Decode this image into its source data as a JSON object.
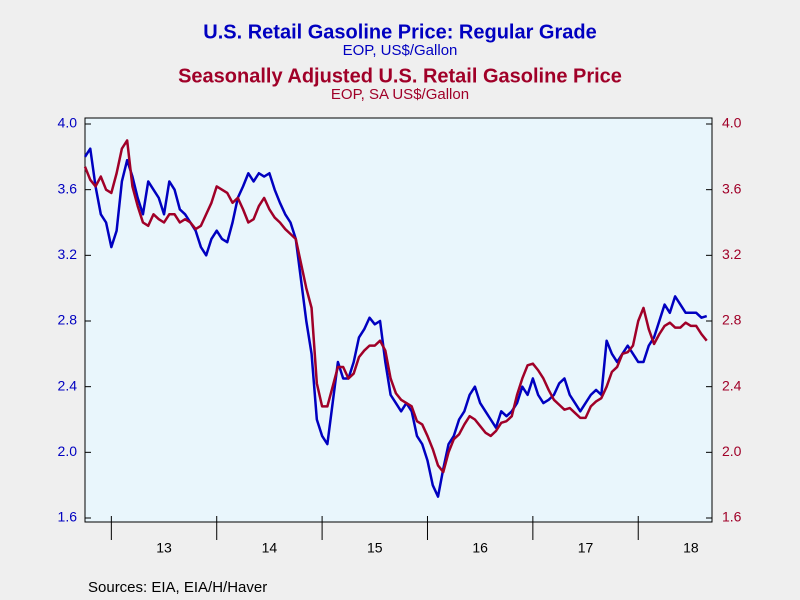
{
  "chart_data": {
    "type": "line",
    "source": "Sources:  EIA, EIA/H/Haver",
    "xlim": [
      2012.75,
      2018.7
    ],
    "xticks": [
      {
        "value": 2013.5,
        "label": "13"
      },
      {
        "value": 2014.5,
        "label": "14"
      },
      {
        "value": 2015.5,
        "label": "15"
      },
      {
        "value": 2016.5,
        "label": "16"
      },
      {
        "value": 2017.5,
        "label": "17"
      },
      {
        "value": 2018.5,
        "label": "18"
      }
    ],
    "ylim": [
      1.6,
      4.0
    ],
    "yticks": [
      1.6,
      {
        "value": 2.0,
        "label": "2.0"
      },
      2.4,
      2.8,
      3.2,
      3.6,
      {
        "value": 4.0,
        "label": "4.0"
      }
    ],
    "y2lim": [
      1.6,
      4.0
    ],
    "y2ticks": [
      1.6,
      {
        "value": 2.0,
        "label": "2.0"
      },
      2.4,
      2.8,
      3.2,
      3.6,
      {
        "value": 4.0,
        "label": "4.0"
      }
    ],
    "x": [
      2012.75,
      2012.8,
      2012.85,
      2012.9,
      2012.95,
      2013,
      2013.05,
      2013.1,
      2013.15,
      2013.2,
      2013.25,
      2013.3,
      2013.35,
      2013.4,
      2013.45,
      2013.5,
      2013.55,
      2013.6,
      2013.65,
      2013.7,
      2013.75,
      2013.8,
      2013.85,
      2013.9,
      2013.95,
      2014,
      2014.05,
      2014.1,
      2014.15,
      2014.2,
      2014.25,
      2014.3,
      2014.35,
      2014.4,
      2014.45,
      2014.5,
      2014.55,
      2014.6,
      2014.65,
      2014.7,
      2014.75,
      2014.8,
      2014.85,
      2014.9,
      2014.95,
      2015,
      2015.05,
      2015.1,
      2015.15,
      2015.2,
      2015.25,
      2015.3,
      2015.35,
      2015.4,
      2015.45,
      2015.5,
      2015.55,
      2015.6,
      2015.65,
      2015.7,
      2015.75,
      2015.8,
      2015.85,
      2015.9,
      2015.95,
      2016,
      2016.05,
      2016.1,
      2016.15,
      2016.2,
      2016.25,
      2016.3,
      2016.35,
      2016.4,
      2016.45,
      2016.5,
      2016.55,
      2016.6,
      2016.65,
      2016.7,
      2016.75,
      2016.8,
      2016.85,
      2016.9,
      2016.95,
      2017,
      2017.05,
      2017.1,
      2017.15,
      2017.2,
      2017.25,
      2017.3,
      2017.35,
      2017.4,
      2017.45,
      2017.5,
      2017.55,
      2017.6,
      2017.65,
      2017.7,
      2017.75,
      2017.8,
      2017.85,
      2017.9,
      2017.95,
      2018,
      2018.05,
      2018.1,
      2018.15,
      2018.2,
      2018.25,
      2018.3,
      2018.35,
      2018.4,
      2018.45,
      2018.5,
      2018.55,
      2018.6,
      2018.65
    ],
    "series": [
      {
        "name": "U.S. Retail Gasoline Price: Regular Grade",
        "units": "EOP, US$/Gallon",
        "color": "#0000c0",
        "axis": "y",
        "values": [
          3.8,
          3.85,
          3.62,
          3.45,
          3.4,
          3.25,
          3.35,
          3.65,
          3.78,
          3.68,
          3.55,
          3.45,
          3.65,
          3.6,
          3.55,
          3.45,
          3.65,
          3.6,
          3.48,
          3.45,
          3.4,
          3.35,
          3.25,
          3.2,
          3.3,
          3.35,
          3.3,
          3.28,
          3.4,
          3.55,
          3.62,
          3.7,
          3.65,
          3.7,
          3.68,
          3.7,
          3.6,
          3.52,
          3.45,
          3.4,
          3.3,
          3.05,
          2.8,
          2.6,
          2.2,
          2.1,
          2.05,
          2.3,
          2.55,
          2.45,
          2.45,
          2.55,
          2.7,
          2.75,
          2.82,
          2.78,
          2.8,
          2.55,
          2.35,
          2.3,
          2.25,
          2.3,
          2.25,
          2.1,
          2.05,
          1.95,
          1.8,
          1.73,
          1.9,
          2.05,
          2.1,
          2.2,
          2.25,
          2.35,
          2.4,
          2.3,
          2.25,
          2.2,
          2.15,
          2.25,
          2.22,
          2.25,
          2.3,
          2.4,
          2.35,
          2.45,
          2.35,
          2.3,
          2.32,
          2.35,
          2.42,
          2.45,
          2.35,
          2.3,
          2.25,
          2.3,
          2.35,
          2.38,
          2.35,
          2.68,
          2.6,
          2.55,
          2.6,
          2.65,
          2.6,
          2.55,
          2.55,
          2.65,
          2.7,
          2.8,
          2.9,
          2.85,
          2.95,
          2.9,
          2.85,
          2.85,
          2.85,
          2.82,
          2.83
        ]
      },
      {
        "name": "Seasonally Adjusted U.S. Retail Gasoline Price",
        "units": "EOP, SA US$/Gallon",
        "color": "#a00028",
        "axis": "y2",
        "values": [
          3.74,
          3.66,
          3.62,
          3.68,
          3.6,
          3.58,
          3.7,
          3.85,
          3.9,
          3.62,
          3.5,
          3.4,
          3.38,
          3.45,
          3.42,
          3.4,
          3.45,
          3.45,
          3.4,
          3.42,
          3.4,
          3.36,
          3.38,
          3.45,
          3.52,
          3.62,
          3.6,
          3.58,
          3.52,
          3.55,
          3.48,
          3.4,
          3.42,
          3.5,
          3.55,
          3.48,
          3.43,
          3.4,
          3.36,
          3.33,
          3.3,
          3.15,
          3.0,
          2.88,
          2.42,
          2.28,
          2.28,
          2.4,
          2.52,
          2.52,
          2.45,
          2.48,
          2.58,
          2.62,
          2.65,
          2.65,
          2.68,
          2.62,
          2.45,
          2.36,
          2.32,
          2.3,
          2.28,
          2.19,
          2.17,
          2.1,
          2.02,
          1.92,
          1.88,
          2.0,
          2.08,
          2.11,
          2.17,
          2.22,
          2.2,
          2.16,
          2.12,
          2.1,
          2.13,
          2.18,
          2.19,
          2.22,
          2.35,
          2.45,
          2.53,
          2.54,
          2.5,
          2.45,
          2.38,
          2.32,
          2.29,
          2.26,
          2.27,
          2.24,
          2.21,
          2.21,
          2.28,
          2.31,
          2.33,
          2.4,
          2.49,
          2.52,
          2.6,
          2.61,
          2.65,
          2.8,
          2.88,
          2.75,
          2.66,
          2.72,
          2.77,
          2.79,
          2.76,
          2.76,
          2.79,
          2.77,
          2.77,
          2.72,
          2.68
        ]
      }
    ]
  }
}
